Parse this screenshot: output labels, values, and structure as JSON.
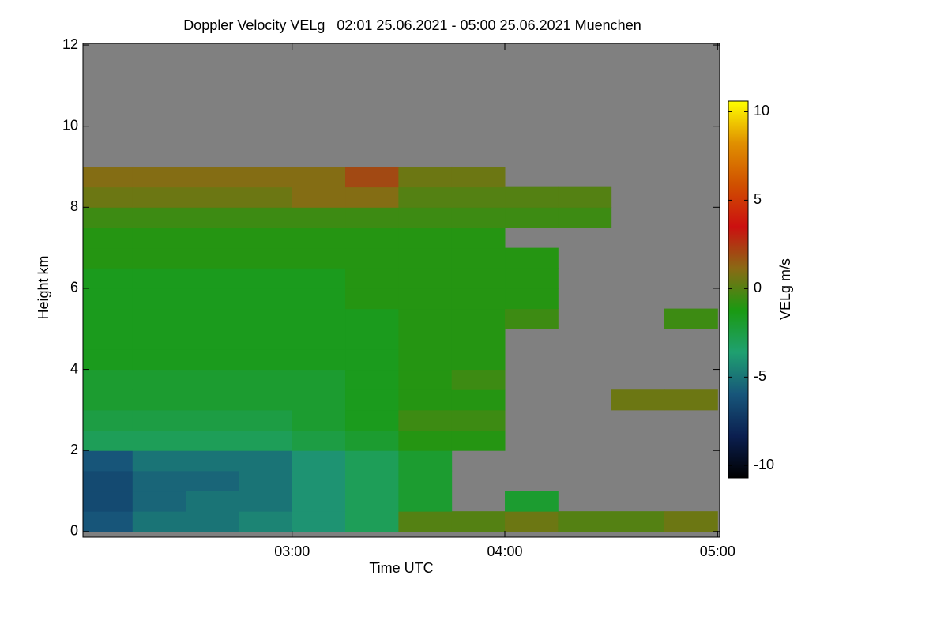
{
  "chart_data": {
    "type": "heatmap",
    "title": "Doppler Velocity VELg   02:01 25.06.2021 - 05:00 25.06.2021 Muenchen",
    "xlabel": "Time UTC",
    "ylabel": "Height km",
    "colorbar_label": "VELg m/s",
    "xlim": [
      2.017,
      5.01
    ],
    "ylim": [
      -0.14,
      12.04
    ],
    "xticks": [
      {
        "value": 3,
        "label": "03:00"
      },
      {
        "value": 4,
        "label": "04:00"
      },
      {
        "value": 5,
        "label": "05:00"
      }
    ],
    "yticks": [
      0,
      2,
      4,
      6,
      8,
      10,
      12
    ],
    "zlim": [
      -10.7,
      10.6
    ],
    "zticks": [
      -10,
      -5,
      0,
      5,
      10
    ],
    "colorscale": [
      "#000000",
      "#0b1f50",
      "#17567a",
      "#1fa070",
      "#1a9a12",
      "#8a6a14",
      "#cc1010",
      "#d05000",
      "#e09000",
      "#ffff00"
    ],
    "missing_color": "#808080",
    "x": [
      2.0,
      2.25,
      2.5,
      2.75,
      3.0,
      3.25,
      3.5,
      3.75,
      4.0,
      4.25,
      4.5,
      4.75,
      5.0
    ],
    "y": [
      0,
      0.5,
      1,
      1.5,
      2,
      2.5,
      3,
      3.5,
      4,
      4.5,
      5,
      5.5,
      6,
      6.5,
      7,
      7.5,
      8,
      8.5,
      9
    ],
    "z": [
      [
        -6,
        -5,
        -5,
        -4.5,
        -4,
        -3,
        0,
        0,
        0.5,
        0,
        0,
        0.5
      ],
      [
        -6.5,
        -5.5,
        -5,
        -5,
        -4,
        -3,
        -2,
        null,
        -2,
        null,
        null,
        null
      ],
      [
        -6.5,
        -5.5,
        -5.5,
        -5,
        -4,
        -3,
        -2,
        null,
        null,
        null,
        null,
        null
      ],
      [
        -6,
        -5,
        -5,
        -5,
        -4,
        -3,
        -2,
        null,
        null,
        null,
        null,
        null
      ],
      [
        -3,
        -3,
        -3,
        -3,
        -2.5,
        -2,
        -1,
        -1,
        null,
        null,
        null,
        null
      ],
      [
        -2.5,
        -2.5,
        -2.5,
        -2.5,
        -2,
        -1.5,
        -0.5,
        -0.5,
        null,
        null,
        null,
        null
      ],
      [
        -2,
        -2,
        -2,
        -2,
        -2,
        -1.5,
        -1,
        -1,
        null,
        null,
        0.5,
        0.5
      ],
      [
        -2,
        -2,
        -2,
        -2,
        -2,
        -1.5,
        -1,
        -0.5,
        null,
        null,
        null,
        null
      ],
      [
        -1.5,
        -1.5,
        -1.5,
        -1.5,
        -1.5,
        -1.5,
        -1,
        -1,
        null,
        null,
        null,
        null
      ],
      [
        -1.5,
        -1.5,
        -1.5,
        -1.5,
        -1.5,
        -1.5,
        -1,
        -1,
        null,
        null,
        null,
        null
      ],
      [
        -1.5,
        -1.5,
        -1.5,
        -1.5,
        -1.5,
        -1.5,
        -1,
        -1,
        -0.5,
        null,
        null,
        -0.5
      ],
      [
        -1.5,
        -1.5,
        -1.5,
        -1.5,
        -1.5,
        -1,
        -1,
        -1,
        -1,
        null,
        null,
        null
      ],
      [
        -1.5,
        -1.5,
        -1.5,
        -1.5,
        -1.5,
        -1,
        -1,
        -1,
        -1,
        null,
        null,
        null
      ],
      [
        -1,
        -1,
        -1,
        -1,
        -1,
        -1,
        -1,
        -1,
        -1,
        null,
        null,
        null
      ],
      [
        -1,
        -1,
        -1,
        -1,
        -1,
        -1,
        -1,
        -1,
        null,
        null,
        null,
        null
      ],
      [
        -0.5,
        -0.5,
        -0.5,
        -0.5,
        -0.5,
        -0.5,
        -0.5,
        -0.5,
        -0.5,
        -0.5,
        null,
        null
      ],
      [
        0.5,
        0.5,
        0.5,
        0.5,
        1,
        1,
        0,
        0,
        0,
        0,
        null,
        null
      ],
      [
        1,
        1,
        1,
        1,
        1,
        2,
        0.5,
        0.5,
        null,
        null,
        null,
        null
      ]
    ]
  }
}
